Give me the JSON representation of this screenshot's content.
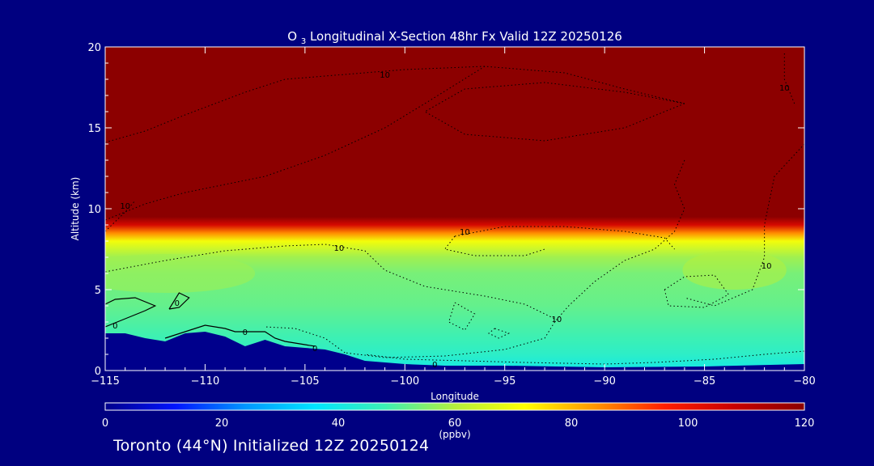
{
  "chart_data": {
    "type": "heatmap",
    "title": "O",
    "title_subscript": "3",
    "title_rest": " Longitudinal X-Section 48hr  Fx Valid 12Z 20250126",
    "xlabel": "Longitude",
    "ylabel": "Altitude (km)",
    "xlim": [
      -115,
      -80
    ],
    "ylim": [
      0,
      20
    ],
    "x_ticks": [
      -115,
      -110,
      -105,
      -100,
      -95,
      -90,
      -85,
      -80
    ],
    "x_tick_labels": [
      "−115",
      "−110",
      "−105",
      "−100",
      "−95",
      "−90",
      "−85",
      "−80"
    ],
    "y_ticks": [
      0,
      5,
      10,
      15,
      20
    ],
    "y_tick_labels": [
      "0",
      "5",
      "10",
      "15",
      "20"
    ],
    "colorbar": {
      "label": "(ppbv)",
      "range": [
        0,
        120
      ],
      "ticks": [
        0,
        20,
        40,
        60,
        80,
        100,
        120
      ],
      "tick_labels": [
        "0",
        "20",
        "40",
        "60",
        "80",
        "100",
        "120"
      ],
      "colors": [
        "#00008c",
        "#0014ff",
        "#0096ff",
        "#00e6ff",
        "#3cf0b4",
        "#b4f03c",
        "#ffff00",
        "#ff9600",
        "#ff1e00",
        "#c80000",
        "#8c0000"
      ]
    },
    "field_profile": {
      "altitude_km": [
        0,
        1,
        2,
        3,
        4,
        5,
        6,
        7,
        8,
        8.5,
        9,
        9.5,
        20
      ],
      "ozone_ppbv": [
        40,
        45,
        48,
        50,
        52,
        53,
        54,
        58,
        70,
        85,
        105,
        122,
        125
      ]
    },
    "terrain_top_km": {
      "longitude": [
        -115,
        -114,
        -113,
        -112,
        -111,
        -110,
        -109,
        -108,
        -107,
        -106,
        -105,
        -104,
        -103,
        -102,
        -100,
        -98,
        -95,
        -90,
        -85,
        -80
      ],
      "altitude": [
        2.3,
        2.3,
        2.0,
        1.8,
        2.3,
        2.4,
        2.1,
        1.5,
        1.9,
        1.5,
        1.4,
        1.3,
        1.0,
        0.6,
        0.4,
        0.3,
        0.3,
        0.2,
        0.25,
        0.4
      ]
    },
    "contour_labels": [
      {
        "text": "10",
        "lon": -101,
        "alt": 18.3
      },
      {
        "text": "10",
        "lon": -81,
        "alt": 17.5
      },
      {
        "text": "10",
        "lon": -114,
        "alt": 10.2
      },
      {
        "text": "10",
        "lon": -97,
        "alt": 8.6
      },
      {
        "text": "10",
        "lon": -103.3,
        "alt": 7.6
      },
      {
        "text": "10",
        "lon": -81.9,
        "alt": 6.5
      },
      {
        "text": "10",
        "lon": -92.4,
        "alt": 3.2
      },
      {
        "text": "0",
        "lon": -114.5,
        "alt": 2.8
      },
      {
        "text": "0",
        "lon": -111.4,
        "alt": 4.2
      },
      {
        "text": "0",
        "lon": -108,
        "alt": 2.4
      },
      {
        "text": "0",
        "lon": -104.5,
        "alt": 1.4
      },
      {
        "text": "0",
        "lon": -98.5,
        "alt": 0.4
      }
    ]
  },
  "footer": {
    "text": "Toronto (44°N) Initialized 12Z 20250124"
  },
  "colors": {
    "background": "#000080",
    "axes": "#ffffff",
    "contour": "#000000"
  }
}
